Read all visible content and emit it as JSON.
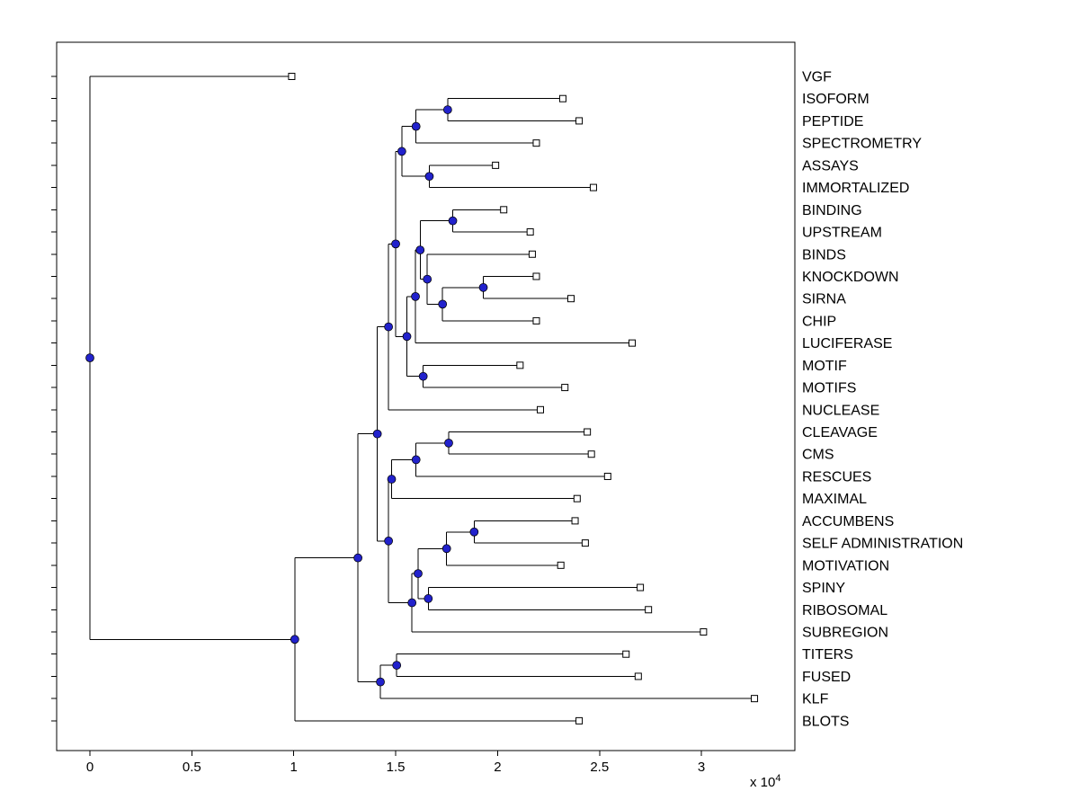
{
  "figure": {
    "background": "#ffffff",
    "axis_color": "#000000",
    "branch_color": "#000000",
    "text_color": "#000000",
    "internal_node_color": "#2222cc",
    "leaf_marker_fill": "#ffffff",
    "leaf_marker_edge": "#000000"
  },
  "chart_data": {
    "type": "dendrogram",
    "orientation": "left-to-right",
    "title": "",
    "x_axis": {
      "tick_values": [
        0,
        0.5,
        1,
        1.5,
        2,
        2.5,
        3
      ],
      "tick_labels": [
        "0",
        "0.5",
        "1",
        "1.5",
        "2",
        "2.5",
        "3"
      ],
      "range": [
        -0.163,
        3.458
      ],
      "units_note": "branch distance, values multiplied by 10^4",
      "exponent_prefix": "x 10",
      "exponent_value": "4"
    },
    "leaves": [
      {
        "label": "VGF",
        "x": 0.99
      },
      {
        "label": "ISOFORM",
        "x": 2.32
      },
      {
        "label": "PEPTIDE",
        "x": 2.4
      },
      {
        "label": "SPECTROMETRY",
        "x": 2.19
      },
      {
        "label": "ASSAYS",
        "x": 1.99
      },
      {
        "label": "IMMORTALIZED",
        "x": 2.47
      },
      {
        "label": "BINDING",
        "x": 2.03
      },
      {
        "label": "UPSTREAM",
        "x": 2.16
      },
      {
        "label": "BINDS",
        "x": 2.17
      },
      {
        "label": "KNOCKDOWN",
        "x": 2.19
      },
      {
        "label": "SIRNA",
        "x": 2.36
      },
      {
        "label": "CHIP",
        "x": 2.19
      },
      {
        "label": "LUCIFERASE",
        "x": 2.66
      },
      {
        "label": "MOTIF",
        "x": 2.11
      },
      {
        "label": "MOTIFS",
        "x": 2.33
      },
      {
        "label": "NUCLEASE",
        "x": 2.21
      },
      {
        "label": "CLEAVAGE",
        "x": 2.44
      },
      {
        "label": "CMS",
        "x": 2.46
      },
      {
        "label": "RESCUES",
        "x": 2.54
      },
      {
        "label": "MAXIMAL",
        "x": 2.39
      },
      {
        "label": "ACCUMBENS",
        "x": 2.38
      },
      {
        "label": "SELF ADMINISTRATION",
        "x": 2.43
      },
      {
        "label": "MOTIVATION",
        "x": 2.31
      },
      {
        "label": "SPINY",
        "x": 2.7
      },
      {
        "label": "RIBOSOMAL",
        "x": 2.74
      },
      {
        "label": "SUBREGION",
        "x": 3.01
      },
      {
        "label": "TITERS",
        "x": 2.63
      },
      {
        "label": "FUSED",
        "x": 2.69
      },
      {
        "label": "KLF",
        "x": 3.26
      },
      {
        "label": "BLOTS",
        "x": 2.4
      }
    ],
    "internal_nodes": [
      {
        "id": "n-isoform-peptide",
        "children": [
          "ISOFORM",
          "PEPTIDE"
        ],
        "x": 1.755
      },
      {
        "id": "n-iso-spec",
        "children": [
          "n-isoform-peptide",
          "SPECTROMETRY"
        ],
        "x": 1.6
      },
      {
        "id": "n-assays-immort",
        "children": [
          "ASSAYS",
          "IMMORTALIZED"
        ],
        "x": 1.665
      },
      {
        "id": "n-top-a",
        "children": [
          "n-iso-spec",
          "n-assays-immort"
        ],
        "x": 1.53
      },
      {
        "id": "n-binding-upstream",
        "children": [
          "BINDING",
          "UPSTREAM"
        ],
        "x": 1.78
      },
      {
        "id": "n-knockdown-sirna",
        "children": [
          "KNOCKDOWN",
          "SIRNA"
        ],
        "x": 1.93
      },
      {
        "id": "n-ks-chip",
        "children": [
          "n-knockdown-sirna",
          "CHIP"
        ],
        "x": 1.73
      },
      {
        "id": "n-binds-ksc",
        "children": [
          "BINDS",
          "n-ks-chip"
        ],
        "x": 1.655
      },
      {
        "id": "n-bu-bksc",
        "children": [
          "n-binding-upstream",
          "n-binds-ksc"
        ],
        "x": 1.62
      },
      {
        "id": "n-b-luciferase",
        "children": [
          "n-bu-bksc",
          "LUCIFERASE"
        ],
        "x": 1.597
      },
      {
        "id": "n-motif-motifs",
        "children": [
          "MOTIF",
          "MOTIFS"
        ],
        "x": 1.635
      },
      {
        "id": "n-b-motif",
        "children": [
          "n-b-luciferase",
          "n-motif-motifs"
        ],
        "x": 1.555
      },
      {
        "id": "n-upper-a",
        "children": [
          "n-top-a",
          "n-b-motif"
        ],
        "x": 1.5
      },
      {
        "id": "n-upper",
        "children": [
          "n-upper-a",
          "NUCLEASE"
        ],
        "x": 1.465
      },
      {
        "id": "n-cleavage-cms",
        "children": [
          "CLEAVAGE",
          "CMS"
        ],
        "x": 1.76
      },
      {
        "id": "n-cc-rescues",
        "children": [
          "n-cleavage-cms",
          "RESCUES"
        ],
        "x": 1.6
      },
      {
        "id": "n-ccr-maximal",
        "children": [
          "n-cc-rescues",
          "MAXIMAL"
        ],
        "x": 1.48
      },
      {
        "id": "n-accumbens-selfadmin",
        "children": [
          "ACCUMBENS",
          "SELF ADMINISTRATION"
        ],
        "x": 1.885
      },
      {
        "id": "n-as-motivation",
        "children": [
          "n-accumbens-selfadmin",
          "MOTIVATION"
        ],
        "x": 1.75
      },
      {
        "id": "n-spiny-ribosomal",
        "children": [
          "SPINY",
          "RIBOSOMAL"
        ],
        "x": 1.66
      },
      {
        "id": "n-asm-sr",
        "children": [
          "n-as-motivation",
          "n-spiny-ribosomal"
        ],
        "x": 1.61
      },
      {
        "id": "n-lower-b",
        "children": [
          "n-asm-sr",
          "SUBREGION"
        ],
        "x": 1.58
      },
      {
        "id": "n-lower",
        "children": [
          "n-ccr-maximal",
          "n-lower-b"
        ],
        "x": 1.465
      },
      {
        "id": "n-mid",
        "children": [
          "n-upper",
          "n-lower"
        ],
        "x": 1.41
      },
      {
        "id": "n-titers-fused",
        "children": [
          "TITERS",
          "FUSED"
        ],
        "x": 1.505
      },
      {
        "id": "n-tf-klf",
        "children": [
          "n-titers-fused",
          "KLF"
        ],
        "x": 1.425
      },
      {
        "id": "n-main",
        "children": [
          "n-mid",
          "n-tf-klf"
        ],
        "x": 1.315
      },
      {
        "id": "n-main-blots",
        "children": [
          "n-main",
          "BLOTS"
        ],
        "x": 1.005
      },
      {
        "id": "root",
        "children": [
          "VGF",
          "n-main-blots"
        ],
        "x": 0.0
      }
    ]
  }
}
